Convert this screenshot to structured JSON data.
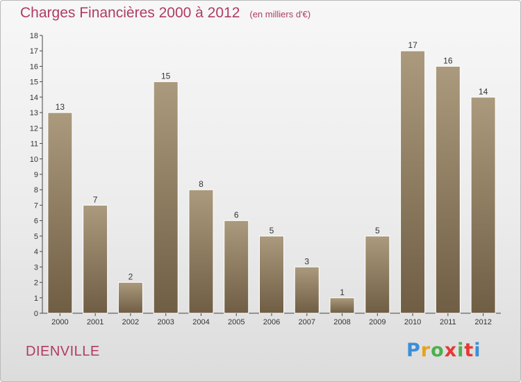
{
  "header": {
    "title": "Charges Financières 2000 à 2012",
    "unit": "(en milliers d'€)"
  },
  "footer": {
    "place": "DIENVILLE",
    "logo": [
      "P",
      "r",
      "o",
      "x",
      "i",
      "t",
      "i"
    ],
    "logo_colors": [
      "#3b8fd6",
      "#e8a21a",
      "#4caf50",
      "#e53935",
      "#4caf50",
      "#e53935",
      "#3b8fd6"
    ]
  },
  "chart_data": {
    "type": "bar",
    "title": "Charges Financières 2000 à 2012",
    "subtitle": "(en milliers d'€)",
    "categories": [
      "2000",
      "2001",
      "2002",
      "2003",
      "2004",
      "2005",
      "2006",
      "2007",
      "2008",
      "2009",
      "2010",
      "2011",
      "2012"
    ],
    "values": [
      13,
      7,
      2,
      15,
      8,
      6,
      5,
      3,
      1,
      5,
      17,
      16,
      14
    ],
    "ylim": [
      0,
      18
    ],
    "yticks": [
      0,
      1,
      2,
      3,
      4,
      5,
      6,
      7,
      8,
      9,
      10,
      11,
      12,
      13,
      14,
      15,
      16,
      17,
      18
    ],
    "xlabel": "",
    "ylabel": "",
    "bar_color": "#8b7b62",
    "grid": false,
    "legend": "none"
  }
}
